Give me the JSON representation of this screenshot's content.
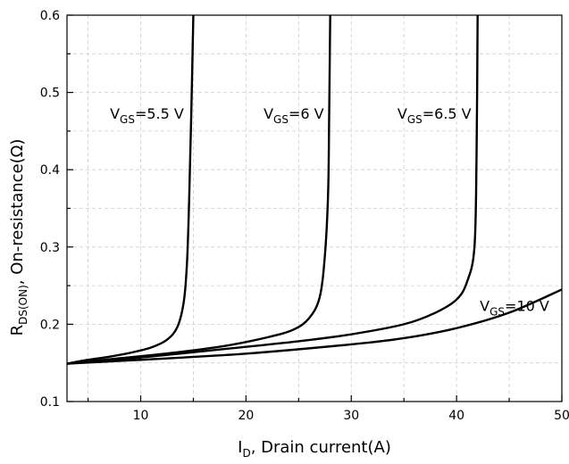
{
  "chart_data": {
    "type": "line",
    "xlabel": {
      "main": "I",
      "sub": "D",
      "rest": ", Drain current(A)"
    },
    "ylabel": {
      "main": "R",
      "sub": "DS(ON)",
      "rest": ", On-resistance(Ω)"
    },
    "xlim": [
      3,
      50
    ],
    "ylim": [
      0.1,
      0.6
    ],
    "xticks": [
      10,
      20,
      30,
      40,
      50
    ],
    "yticks": [
      0.1,
      0.2,
      0.3,
      0.4,
      0.5,
      0.6
    ],
    "grid": true,
    "series": [
      {
        "name": "5.5 V",
        "label": {
          "main": "V",
          "sub": "GS",
          "rest": "=5.5 V"
        },
        "x": [
          3,
          5,
          7,
          9,
          11,
          12.5,
          13.5,
          14.1,
          14.4,
          14.6,
          14.8,
          15
        ],
        "y": [
          0.149,
          0.154,
          0.158,
          0.163,
          0.17,
          0.18,
          0.197,
          0.23,
          0.28,
          0.36,
          0.47,
          0.6
        ]
      },
      {
        "name": "6 V",
        "label": {
          "main": "V",
          "sub": "GS",
          "rest": "=6 V"
        },
        "x": [
          3,
          8,
          13,
          18,
          22,
          24.5,
          26,
          27,
          27.5,
          27.8,
          27.9,
          28
        ],
        "y": [
          0.149,
          0.156,
          0.163,
          0.172,
          0.183,
          0.193,
          0.208,
          0.235,
          0.29,
          0.37,
          0.47,
          0.6
        ]
      },
      {
        "name": "6.5 V",
        "label": {
          "main": "V",
          "sub": "GS",
          "rest": "=6.5 V"
        },
        "x": [
          3,
          10,
          18,
          25,
          30,
          35,
          38,
          40,
          41,
          41.7,
          41.9,
          42
        ],
        "y": [
          0.149,
          0.157,
          0.168,
          0.178,
          0.187,
          0.2,
          0.215,
          0.232,
          0.255,
          0.3,
          0.42,
          0.6
        ]
      },
      {
        "name": "10 V",
        "label": {
          "main": "V",
          "sub": "GS",
          "rest": "=10 V"
        },
        "x": [
          3,
          10,
          20,
          30,
          35,
          40,
          45,
          50
        ],
        "y": [
          0.149,
          0.154,
          0.162,
          0.174,
          0.182,
          0.195,
          0.215,
          0.245
        ]
      }
    ]
  }
}
